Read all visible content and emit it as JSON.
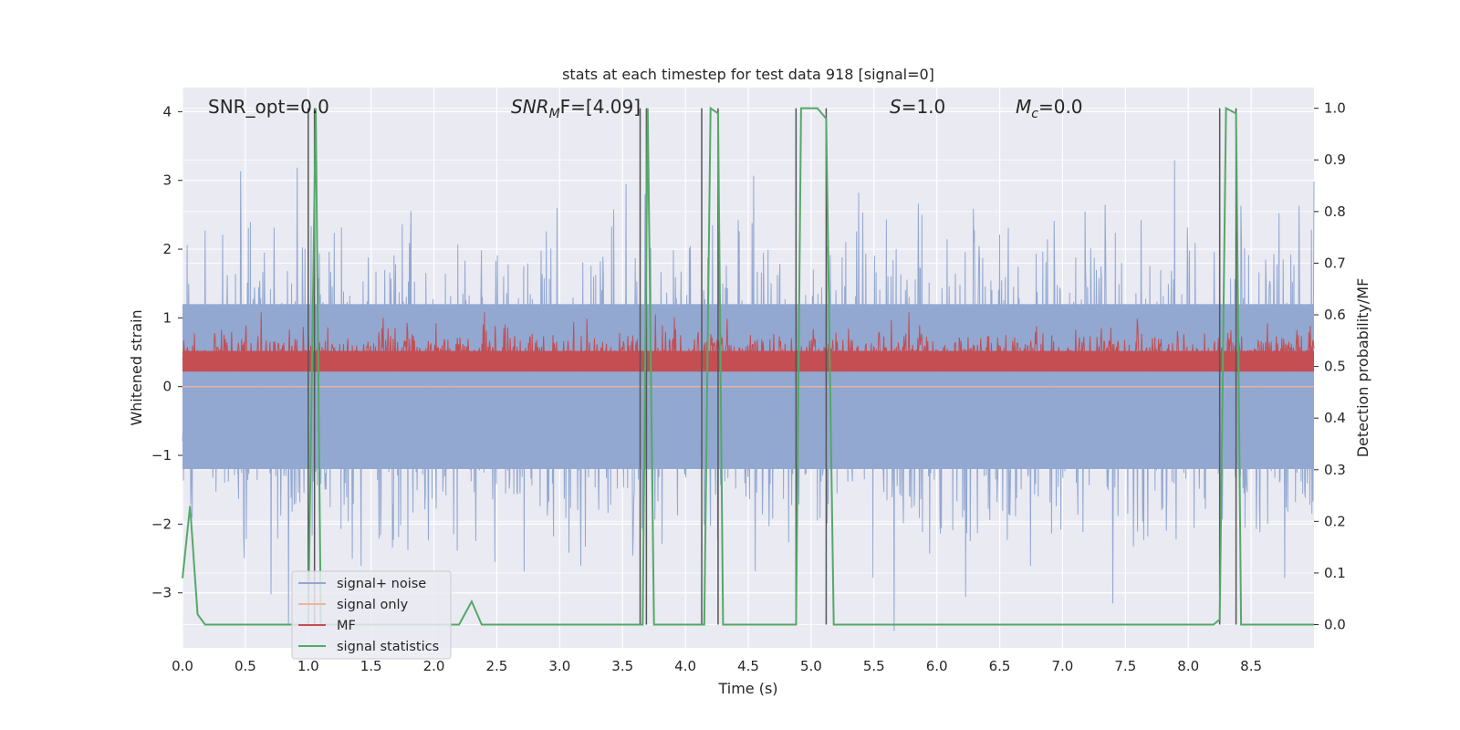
{
  "chart_data": {
    "type": "line",
    "title": "stats at each timestep for test data 918 [signal=0]",
    "xlabel": "Time (s)",
    "ylabel": "Whitened strain",
    "ylabel_right": "Detection probability/MF",
    "xlim": [
      0,
      9.0
    ],
    "ylim": [
      -3.8,
      4.35
    ],
    "ylim_right": [
      -0.045,
      1.04
    ],
    "x_ticks": [
      "0.0",
      "0.5",
      "1.0",
      "1.5",
      "2.0",
      "2.5",
      "3.0",
      "3.5",
      "4.0",
      "4.5",
      "5.0",
      "5.5",
      "6.0",
      "6.5",
      "7.0",
      "7.5",
      "8.0",
      "8.5"
    ],
    "y_ticks": [
      "4",
      "3",
      "2",
      "1",
      "0",
      "−1",
      "−2",
      "−3"
    ],
    "y_ticks_values": [
      4,
      3,
      2,
      1,
      0,
      -1,
      -2,
      -3
    ],
    "y_right_ticks": [
      "1.0",
      "0.9",
      "0.8",
      "0.7",
      "0.6",
      "0.5",
      "0.4",
      "0.3",
      "0.2",
      "0.1",
      "0.0"
    ],
    "y_right_ticks_values": [
      1.0,
      0.9,
      0.8,
      0.7,
      0.6,
      0.5,
      0.4,
      0.3,
      0.2,
      0.1,
      0.0
    ],
    "grid": true,
    "legend_position": "lower-left",
    "annotations": {
      "snr_opt": "SNR_opt=0.0",
      "snr_mf_pre": "SNR",
      "snr_mf_sub": "M",
      "snr_mf_post": "F=[4.09]",
      "s_label": "S",
      "s_value": "=1.0",
      "mc_label": "M",
      "mc_sub": "c",
      "mc_value": "=0.0"
    },
    "series": [
      {
        "name": "signal+ noise",
        "color": "#92a8d1",
        "axis": "left",
        "description_range": [
          -3.5,
          3.5
        ],
        "style": "dense noise band"
      },
      {
        "name": "signal only",
        "color": "#f2b49a",
        "axis": "left",
        "values_constant": 0.0
      },
      {
        "name": "MF",
        "color": "#c44e52",
        "axis": "right",
        "baseline": 0.5,
        "range": [
          0.45,
          0.6
        ]
      },
      {
        "name": "signal statistics",
        "color": "#55a868",
        "axis": "right",
        "x": [
          0.0,
          0.06,
          0.12,
          0.18,
          0.25,
          0.98,
          1.0,
          1.06,
          1.1,
          1.15,
          2.2,
          2.3,
          2.38,
          3.62,
          3.66,
          3.7,
          3.75,
          4.12,
          4.15,
          4.2,
          4.26,
          4.3,
          4.6,
          4.88,
          4.92,
          5.05,
          5.12,
          5.18,
          5.2,
          8.2,
          8.25,
          8.3,
          8.38,
          8.42,
          9.0
        ],
        "y": [
          0.09,
          0.23,
          0.02,
          0.0,
          0.0,
          0.0,
          0.0,
          1.0,
          0.0,
          0.0,
          0.0,
          0.045,
          0.0,
          0.0,
          0.0,
          1.0,
          0.0,
          0.0,
          0.0,
          1.0,
          0.99,
          0.0,
          0.0,
          0.0,
          1.0,
          1.0,
          0.98,
          0.0,
          0.0,
          0.0,
          0.01,
          1.0,
          0.99,
          0.0,
          0.0
        ]
      }
    ],
    "detection_markers_x": [
      1.0,
      1.05,
      3.64,
      3.69,
      4.13,
      4.26,
      4.88,
      5.12,
      8.25,
      8.38
    ]
  }
}
